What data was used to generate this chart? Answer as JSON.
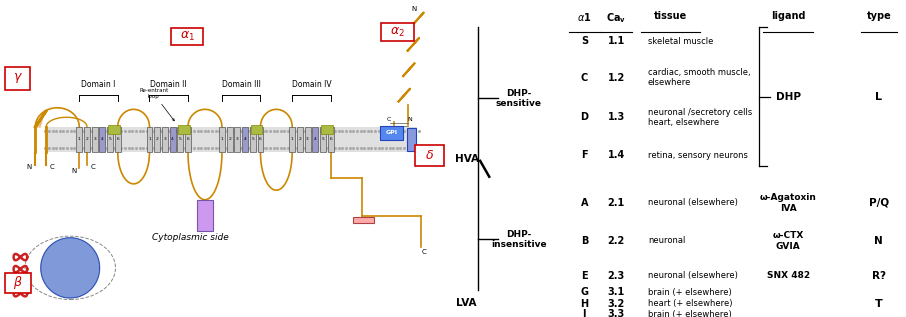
{
  "bg_color": "#ffffff",
  "right_panel": {
    "rows": [
      {
        "alpha1": "S",
        "cav": "1.1",
        "tissue": "skeletal muscle",
        "ligand": "DHP",
        "type": "L",
        "group": "dhp_s"
      },
      {
        "alpha1": "C",
        "cav": "1.2",
        "tissue": "cardiac, smooth muscle,\nelsewhere",
        "ligand": "DHP",
        "type": "L",
        "group": "dhp_s"
      },
      {
        "alpha1": "D",
        "cav": "1.3",
        "tissue": "neuronal /secretory cells\nheart, elsewhere",
        "ligand": "DHP",
        "type": "L",
        "group": "dhp_s"
      },
      {
        "alpha1": "F",
        "cav": "1.4",
        "tissue": "retina, sensory neurons",
        "ligand": "DHP",
        "type": "L",
        "group": "dhp_s"
      },
      {
        "alpha1": "A",
        "cav": "2.1",
        "tissue": "neuronal (elsewhere)",
        "ligand": "ω-Agatoxin\nIVA",
        "type": "P/Q",
        "group": "dhp_i"
      },
      {
        "alpha1": "B",
        "cav": "2.2",
        "tissue": "neuronal",
        "ligand": "ω-CTX\nGVIA",
        "type": "N",
        "group": "dhp_i"
      },
      {
        "alpha1": "E",
        "cav": "2.3",
        "tissue": "neuronal (elsewhere)",
        "ligand": "SNX 482",
        "type": "R?",
        "group": "dhp_i"
      },
      {
        "alpha1": "G",
        "cav": "3.1",
        "tissue": "brain (+ elsewhere)",
        "ligand": "",
        "type": "T",
        "group": "lva"
      },
      {
        "alpha1": "H",
        "cav": "3.2",
        "tissue": "heart (+ elsewhere)",
        "ligand": "",
        "type": "T",
        "group": "lva"
      },
      {
        "alpha1": "I",
        "cav": "3.3",
        "tissue": "brain (+ elsewhere)",
        "ligand": "",
        "type": "T",
        "group": "lva"
      }
    ],
    "channel_color": "#cc8800",
    "box_red": "#cc0000"
  }
}
